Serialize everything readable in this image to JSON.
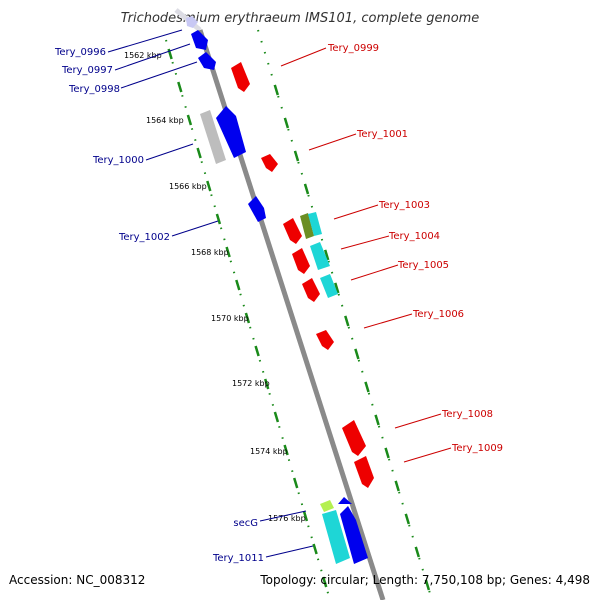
{
  "title": "Trichodesmium erythraeum IMS101, complete genome",
  "footer": {
    "accession": "Accession: NC_008312",
    "summary": "Topology: circular; Length: 7,750,108 bp; Genes: 4,498"
  },
  "colors": {
    "minus_strand_gene": "#0000ff",
    "plus_strand_gene": "#ff0000",
    "label_minus": "#00008b",
    "label_plus": "#cc0000",
    "tick": "#008000",
    "backbone": "#888888"
  },
  "ticks": [
    "1562 kbp",
    "1564 kbp",
    "1566 kbp",
    "1568 kbp",
    "1570 kbp",
    "1572 kbp",
    "1574 kbp",
    "1576 kbp"
  ],
  "genes_left": [
    "Tery_0996",
    "Tery_0997",
    "Tery_0998",
    "Tery_1000",
    "Tery_1002",
    "secG",
    "Tery_1011"
  ],
  "genes_right": [
    "Tery_0999",
    "Tery_1001",
    "Tery_1003",
    "Tery_1004",
    "Tery_1005",
    "Tery_1006",
    "Tery_1008",
    "Tery_1009"
  ]
}
